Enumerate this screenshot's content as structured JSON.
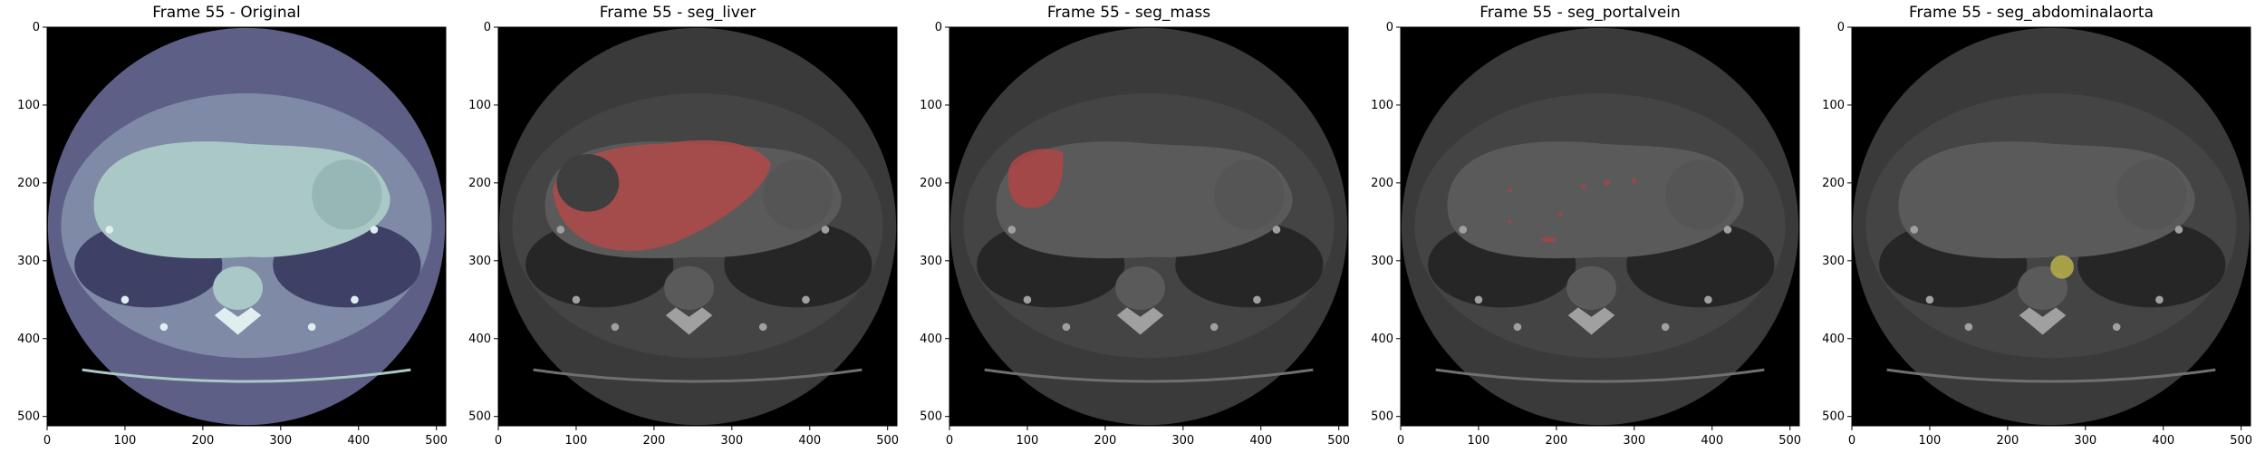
{
  "figure": {
    "panels": [
      {
        "title": "Frame 55 - Original",
        "mode": "original",
        "overlay": null
      },
      {
        "title": "Frame 55 - seg_liver",
        "mode": "gray",
        "overlay": "liver",
        "overlay_color": "#b24a4a"
      },
      {
        "title": "Frame 55 - seg_mass",
        "mode": "gray",
        "overlay": "mass",
        "overlay_color": "#b04545"
      },
      {
        "title": "Frame 55 - seg_portalvein",
        "mode": "gray",
        "overlay": "portalvein",
        "overlay_color": "#a84444"
      },
      {
        "title": "Frame 55 - seg_abdominalaorta",
        "mode": "gray",
        "overlay": "aorta",
        "overlay_color": "#b8b04a"
      }
    ],
    "x_ticks": [
      "0",
      "100",
      "200",
      "300",
      "400",
      "500"
    ],
    "y_ticks": [
      "0",
      "100",
      "200",
      "300",
      "400",
      "500"
    ],
    "colors": {
      "original_body": "#5e5f86",
      "original_organ": "#a9c8c6",
      "gray_body": "#3a3a3a",
      "gray_organ": "#5a5a5a",
      "background": "#000000"
    }
  }
}
